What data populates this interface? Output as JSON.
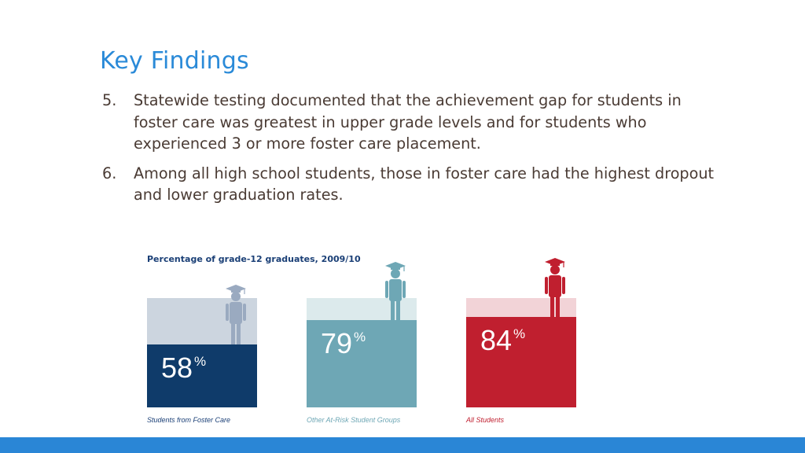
{
  "slide": {
    "title": "Key Findings"
  },
  "findings": [
    {
      "number": "5.",
      "text": "Statewide testing documented that the achievement gap for students in foster care was greatest in upper grade levels and for students who experienced 3 or more foster care placement."
    },
    {
      "number": "6.",
      "text": "Among all high school students, those in foster care had the highest dropout and lower graduation rates."
    }
  ],
  "chart_data": {
    "type": "bar",
    "title": "Percentage of grade-12 graduates, 2009/10",
    "categories": [
      "Students from Foster Care",
      "Other At-Risk Student Groups",
      "All Students"
    ],
    "values": [
      58,
      79,
      84
    ],
    "value_labels": [
      "58",
      "79",
      "84"
    ],
    "unit_symbol": "%",
    "ylim": [
      0,
      100
    ],
    "colors": {
      "fill": [
        "#0f3b6a",
        "#6ea7b5",
        "#c01f2f"
      ],
      "background": [
        "#ccd5df",
        "#dceaec",
        "#f2d3d7"
      ],
      "icon": [
        "#9aaac0",
        "#6ea7b5",
        "#c01f2f"
      ],
      "label": [
        "#1a3f76",
        "#6ea7b5",
        "#c01f2f"
      ]
    },
    "grid": false,
    "legend": "none"
  },
  "theme": {
    "accent": "#2a86d6",
    "title_color": "#2a8ad8",
    "body_text_color": "#4a3b34"
  }
}
